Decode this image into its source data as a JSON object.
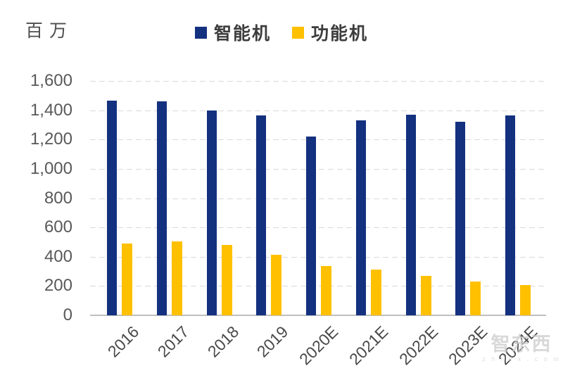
{
  "unit_label": "百万",
  "legend": [
    {
      "name": "智能机",
      "color": "#143180"
    },
    {
      "name": "功能机",
      "color": "#FFC000"
    }
  ],
  "watermark": {
    "brand": "智东西",
    "domain": "z h i d x . c o m"
  },
  "colors": {
    "smartphone_bar": "#143180",
    "feature_bar": "#FFC000",
    "gridline": "#D9D9D9",
    "axis_line": "#BFBFBF",
    "axis_text": "#595959"
  },
  "chart_data": {
    "type": "bar",
    "title": "",
    "ylabel": "百万",
    "xlabel": "",
    "categories": [
      "2016",
      "2017",
      "2018",
      "2019",
      "2020E",
      "2021E",
      "2022E",
      "2023E",
      "2024E"
    ],
    "series": [
      {
        "name": "智能机",
        "color": "#143180",
        "values": [
          1465,
          1460,
          1400,
          1365,
          1220,
          1330,
          1370,
          1320,
          1365
        ]
      },
      {
        "name": "功能机",
        "color": "#FFC000",
        "values": [
          490,
          505,
          480,
          415,
          335,
          310,
          270,
          230,
          205
        ]
      }
    ],
    "ylim": [
      0,
      1600
    ],
    "ytick_step": 200,
    "ytick_labels": [
      "0",
      "200",
      "400",
      "600",
      "800",
      "1,000",
      "1,200",
      "1,400",
      "1,600"
    ],
    "grid": "dashed-horizontal",
    "legend_position": "top-center"
  }
}
